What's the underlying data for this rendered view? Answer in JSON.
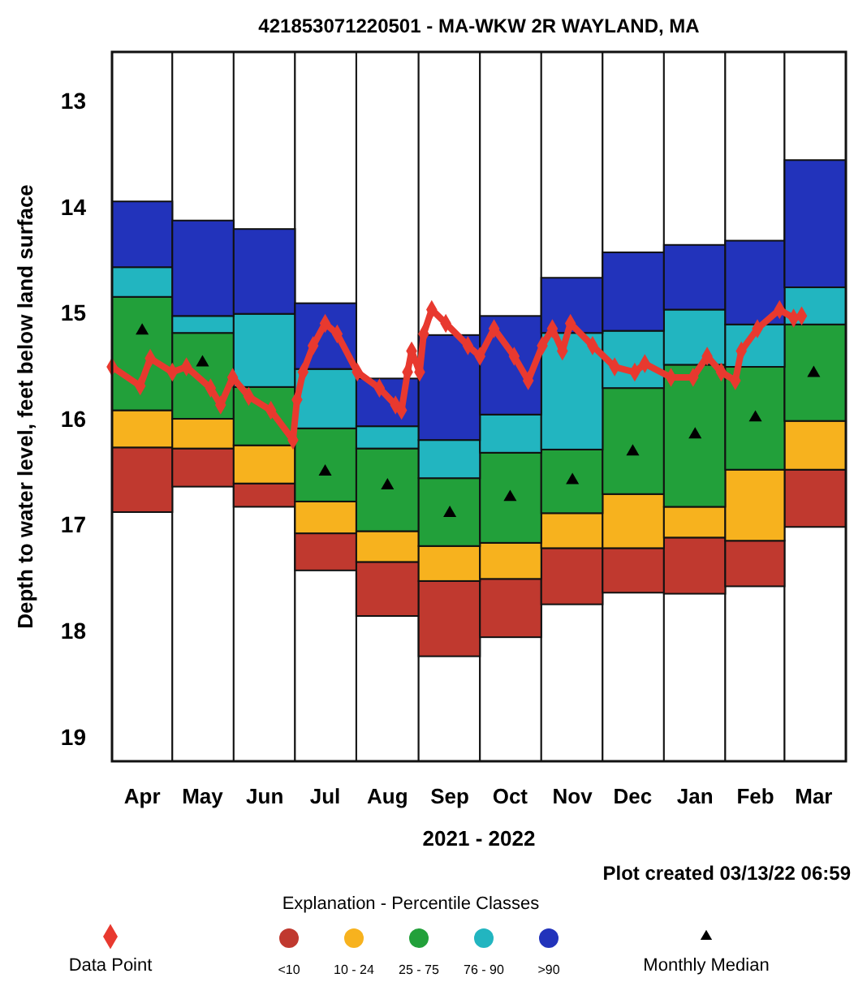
{
  "chart_data": {
    "type": "bar",
    "title": "421853071220501 - MA-WKW 2R WAYLAND, MA",
    "xlabel": "2021 - 2022",
    "ylabel": "Depth to water level, feet below land surface",
    "legend_title": "Explanation - Percentile Classes",
    "legend": "bottom",
    "annotations": [
      "Plot created 03/13/22 06:59"
    ],
    "x": [
      "2021-04-16",
      "2021-05-16",
      "2021-06-16",
      "2021-07-16",
      "2021-08-16",
      "2021-09-16",
      "2021-10-16",
      "2021-11-16",
      "2021-12-16",
      "2022-01-16",
      "2022-02-15",
      "2022-03-16"
    ],
    "xlim": [
      "2021-04-01",
      "2022-04-01"
    ],
    "xticks": [
      {
        "value": "2021-04-16",
        "label": "Apr"
      },
      {
        "value": "2021-05-16",
        "label": "May"
      },
      {
        "value": "2021-06-16",
        "label": "Jun"
      },
      {
        "value": "2021-07-16",
        "label": "Jul"
      },
      {
        "value": "2021-08-16",
        "label": "Aug"
      },
      {
        "value": "2021-09-16",
        "label": "Sep"
      },
      {
        "value": "2021-10-16",
        "label": "Oct"
      },
      {
        "value": "2021-11-16",
        "label": "Nov"
      },
      {
        "value": "2021-12-16",
        "label": "Dec"
      },
      {
        "value": "2022-01-16",
        "label": "Jan"
      },
      {
        "value": "2022-02-15",
        "label": "Feb"
      },
      {
        "value": "2022-03-16",
        "label": "Mar"
      }
    ],
    "ylim": [
      19.23,
      12.54
    ],
    "yticks": [
      13,
      14,
      15,
      16,
      17,
      18,
      19
    ],
    "series": [
      {
        "name": "<10",
        "color": "#c0392f",
        "base": [
          16.27,
          16.28,
          16.61,
          17.08,
          17.35,
          17.53,
          17.51,
          17.22,
          17.22,
          17.12,
          17.15,
          16.48
        ],
        "values": [
          0.61,
          0.36,
          0.22,
          0.35,
          0.51,
          0.71,
          0.55,
          0.53,
          0.42,
          0.53,
          0.43,
          0.54
        ]
      },
      {
        "name": "10 - 24",
        "color": "#f7b21e",
        "base": [
          15.92,
          16.0,
          16.25,
          16.78,
          17.06,
          17.2,
          17.17,
          16.89,
          16.71,
          16.83,
          16.48,
          16.02
        ],
        "values": [
          0.35,
          0.28,
          0.36,
          0.3,
          0.29,
          0.33,
          0.34,
          0.33,
          0.51,
          0.29,
          0.67,
          0.46
        ]
      },
      {
        "name": "25 - 75",
        "color": "#22a03a",
        "base": [
          14.85,
          15.19,
          15.7,
          16.09,
          16.28,
          16.56,
          16.32,
          16.29,
          15.71,
          15.49,
          15.51,
          15.11
        ],
        "values": [
          1.07,
          0.81,
          0.55,
          0.69,
          0.78,
          0.64,
          0.85,
          0.6,
          1.0,
          1.34,
          0.97,
          0.91
        ]
      },
      {
        "name": "76 - 90",
        "color": "#22b5c0",
        "base": [
          14.57,
          15.03,
          15.01,
          15.53,
          16.07,
          16.2,
          15.96,
          15.19,
          15.17,
          14.97,
          15.11,
          14.76
        ],
        "values": [
          0.28,
          0.16,
          0.69,
          0.56,
          0.21,
          0.36,
          0.36,
          1.1,
          0.54,
          0.52,
          0.4,
          0.35
        ]
      },
      {
        "name": ">90",
        "color": "#2233bb",
        "base": [
          13.95,
          14.13,
          14.21,
          14.91,
          15.62,
          15.21,
          15.03,
          14.67,
          14.43,
          14.36,
          14.32,
          13.56
        ],
        "values": [
          0.62,
          0.9,
          0.8,
          0.62,
          0.45,
          0.99,
          0.93,
          0.52,
          0.74,
          0.61,
          0.79,
          1.2
        ]
      },
      {
        "name": "Data Point",
        "type": "line",
        "color": "#e8392f",
        "marker": "diamond",
        "x": [
          "2021-04-01",
          "2021-04-15",
          "2021-04-20",
          "2021-05-01",
          "2021-05-08",
          "2021-05-20",
          "2021-05-25",
          "2021-05-31",
          "2021-06-08",
          "2021-06-19",
          "2021-06-30",
          "2021-07-02",
          "2021-07-05",
          "2021-07-10",
          "2021-07-16",
          "2021-07-22",
          "2021-08-01",
          "2021-08-12",
          "2021-08-20",
          "2021-08-23",
          "2021-08-26",
          "2021-08-28",
          "2021-09-01",
          "2021-09-03",
          "2021-09-07",
          "2021-09-14",
          "2021-09-25",
          "2021-10-01",
          "2021-10-08",
          "2021-10-18",
          "2021-10-25",
          "2021-11-01",
          "2021-11-06",
          "2021-11-11",
          "2021-11-15",
          "2021-11-26",
          "2021-12-07",
          "2021-12-17",
          "2021-12-22",
          "2022-01-04",
          "2022-01-15",
          "2022-01-22",
          "2022-01-29",
          "2022-02-05",
          "2022-02-08",
          "2022-02-16",
          "2022-02-27",
          "2022-03-06",
          "2022-03-10"
        ],
        "values": [
          15.51,
          15.69,
          15.43,
          15.56,
          15.51,
          15.71,
          15.87,
          15.61,
          15.79,
          15.92,
          16.2,
          15.82,
          15.56,
          15.31,
          15.1,
          15.2,
          15.56,
          15.71,
          15.87,
          15.92,
          15.56,
          15.36,
          15.56,
          15.2,
          14.97,
          15.1,
          15.31,
          15.41,
          15.15,
          15.41,
          15.64,
          15.31,
          15.15,
          15.36,
          15.1,
          15.31,
          15.51,
          15.56,
          15.48,
          15.61,
          15.61,
          15.41,
          15.56,
          15.64,
          15.36,
          15.15,
          14.97,
          15.05,
          15.03
        ]
      },
      {
        "name": "Monthly Median",
        "type": "scatter",
        "color": "#000000",
        "marker": "triangle",
        "values": [
          15.17,
          15.47,
          null,
          16.5,
          16.63,
          16.89,
          16.74,
          16.58,
          16.31,
          16.15,
          15.99,
          15.57
        ]
      }
    ]
  }
}
